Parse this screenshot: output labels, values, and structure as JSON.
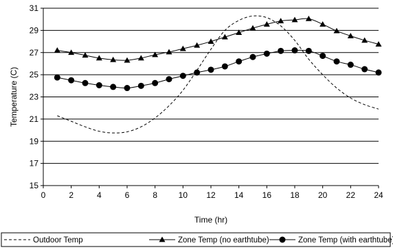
{
  "chart_data": {
    "type": "line",
    "title": "",
    "xlabel": "Time (hr)",
    "ylabel": "Temperature (C)",
    "xlim": [
      0,
      24
    ],
    "ylim": [
      15,
      31
    ],
    "x_ticks": [
      0,
      2,
      4,
      6,
      8,
      10,
      12,
      14,
      16,
      18,
      20,
      22,
      24
    ],
    "y_ticks": [
      15,
      17,
      19,
      21,
      23,
      25,
      27,
      29,
      31
    ],
    "x_tick_labels": [
      "0",
      "2",
      "4",
      "6",
      "8",
      "10",
      "12",
      "14",
      "16",
      "18",
      "20",
      "22",
      "24"
    ],
    "y_tick_labels": [
      "15",
      "17",
      "19",
      "21",
      "23",
      "25",
      "27",
      "29",
      "31"
    ],
    "grid": "horizontal",
    "legend_position": "bottom",
    "x": [
      1,
      2,
      3,
      4,
      5,
      6,
      7,
      8,
      9,
      10,
      11,
      12,
      13,
      14,
      15,
      16,
      17,
      18,
      19,
      20,
      21,
      22,
      23,
      24
    ],
    "series": [
      {
        "name": "Outdoor Temp",
        "style": "dashed",
        "marker": "none",
        "color": "#000000",
        "values": [
          21.3,
          20.8,
          20.3,
          19.9,
          19.75,
          19.85,
          20.3,
          21.1,
          22.2,
          23.6,
          25.4,
          27.3,
          29.0,
          29.9,
          30.3,
          30.15,
          29.4,
          28.1,
          26.4,
          25.0,
          23.8,
          22.9,
          22.3,
          21.9
        ]
      },
      {
        "name": "Zone Temp (no earthtube)",
        "style": "solid",
        "marker": "triangle",
        "color": "#000000",
        "values": [
          27.2,
          27.0,
          26.75,
          26.5,
          26.35,
          26.3,
          26.5,
          26.8,
          27.05,
          27.35,
          27.65,
          28.0,
          28.4,
          28.8,
          29.2,
          29.55,
          29.85,
          29.95,
          30.05,
          29.55,
          28.95,
          28.5,
          28.1,
          27.75
        ]
      },
      {
        "name": "Zone Temp (with earthtube)",
        "style": "solid",
        "marker": "circle",
        "color": "#000000",
        "values": [
          24.75,
          24.5,
          24.25,
          24.05,
          23.9,
          23.8,
          24.0,
          24.25,
          24.6,
          24.9,
          25.2,
          25.45,
          25.75,
          26.2,
          26.6,
          26.9,
          27.15,
          27.2,
          27.15,
          26.7,
          26.2,
          25.9,
          25.5,
          25.2
        ]
      }
    ]
  }
}
